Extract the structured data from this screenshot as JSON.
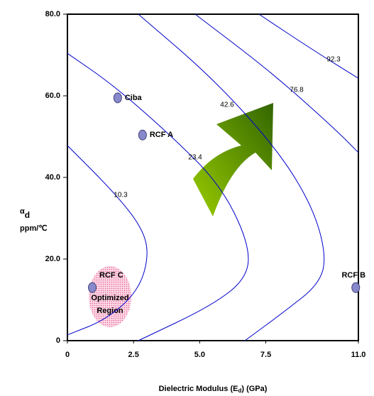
{
  "chart_data": {
    "type": "contour",
    "x_label": [
      "Dielectric Modulus (E",
      "d",
      ") (GPa)"
    ],
    "y_label": {
      "symbol": "α",
      "subscript": "d",
      "unit": "ppm/℃"
    },
    "xlim": [
      0,
      11
    ],
    "xticks": [
      0,
      2.5,
      {
        "value": 5,
        "label": "5.0"
      },
      7.5,
      {
        "value": 11,
        "label": "11.0"
      }
    ],
    "ylim": [
      0,
      80
    ],
    "yticks": [
      0,
      {
        "value": 20,
        "label": "20.0"
      },
      {
        "value": 40,
        "label": "40.0"
      },
      {
        "value": 60,
        "label": "60.0"
      },
      {
        "value": 80,
        "label": "80.0"
      }
    ],
    "contours": [
      {
        "name": "10.3",
        "color": "#0000cc",
        "x": [
          0,
          1.74,
          2.82,
          3.09,
          2.68,
          1.48,
          0
        ],
        "y": [
          47.8,
          36.5,
          27.8,
          20.9,
          12.2,
          5.2,
          1.4
        ]
      },
      {
        "name": "23.4",
        "color": "#0000cc",
        "x": [
          0,
          1.74,
          3.89,
          5.77,
          6.84,
          6.84,
          5.5,
          2.68
        ],
        "y": [
          70.4,
          62.6,
          50.4,
          38.3,
          24.3,
          15.7,
          8.7,
          0
        ]
      },
      {
        "name": "42.6",
        "color": "#0000cc",
        "x": [
          2.68,
          5.5,
          7.92,
          9.26,
          9.79,
          9.53,
          8.18,
          6.71
        ],
        "y": [
          80,
          64.3,
          47,
          33,
          20.9,
          13.9,
          7,
          0
        ]
      },
      {
        "name": "76.8",
        "color": "#0000cc",
        "x": [
          4.83,
          7.65,
          10.06,
          11
        ],
        "y": [
          80,
          66.1,
          52.2,
          46.1
        ]
      },
      {
        "name": "92.3",
        "color": "#0000cc",
        "x": [
          7.24,
          9.26,
          11
        ],
        "y": [
          80,
          71.3,
          64.3
        ]
      }
    ],
    "points": {
      "names": [
        "Ciba",
        "RCF A",
        "RCF C",
        "RCF B"
      ],
      "x": [
        1.9,
        2.84,
        0.94,
        10.9
      ],
      "y": [
        59.5,
        50.4,
        13,
        13
      ]
    },
    "annotation": [
      "Optimized",
      "Region"
    ]
  }
}
